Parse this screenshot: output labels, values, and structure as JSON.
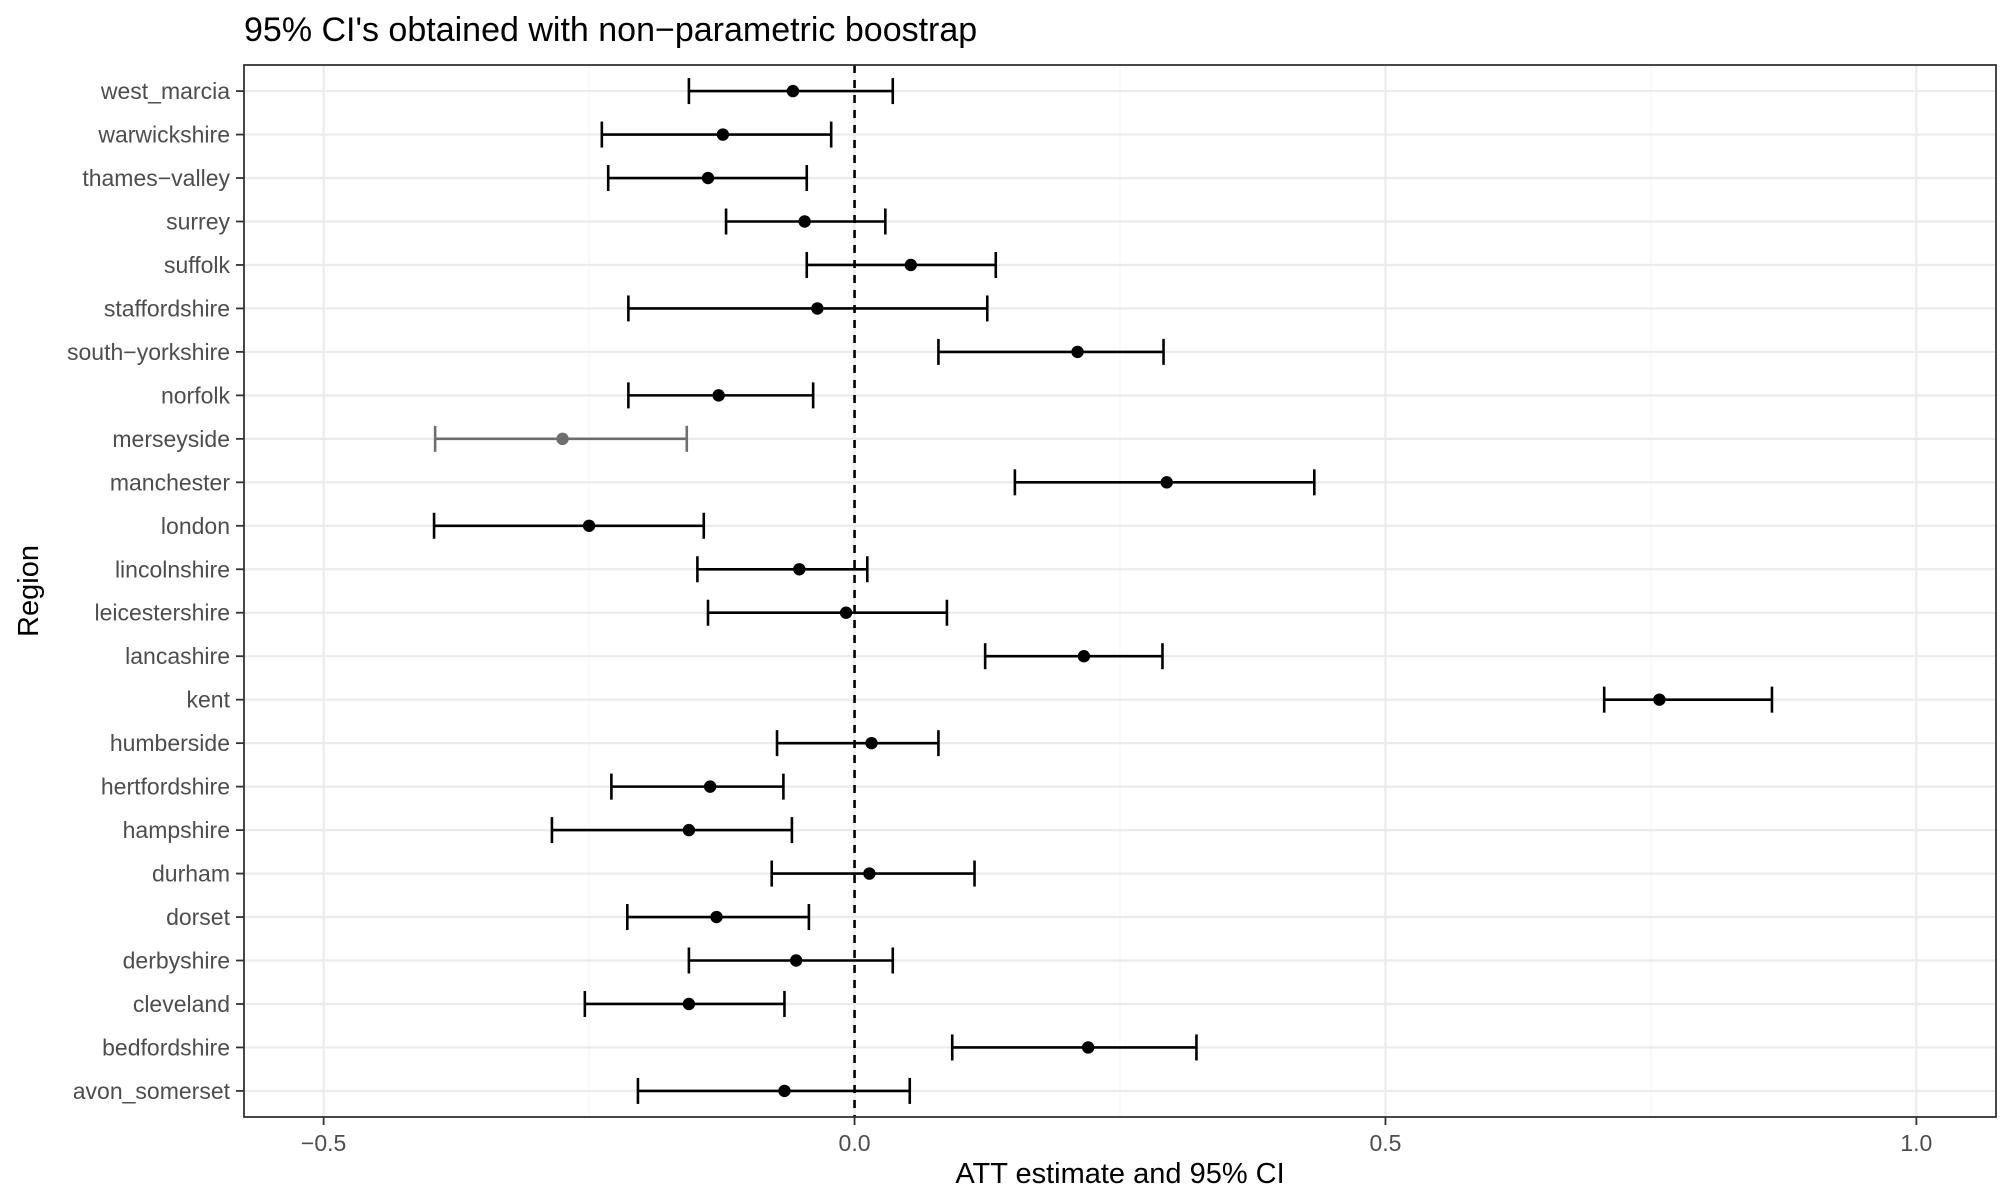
{
  "chart_data": {
    "type": "errorbar",
    "title": "95% CI's obtained with non−parametric boostrap",
    "xlabel": "ATT estimate and 95% CI",
    "ylabel": "Region",
    "xlim": [
      -0.575,
      1.075
    ],
    "x_ticks": [
      -0.5,
      0.0,
      0.5,
      1.0
    ],
    "x_tick_labels": [
      "−0.5",
      "0.0",
      "0.5",
      "1.0"
    ],
    "reference_line": {
      "x": 0.0,
      "style": "dashed"
    },
    "grid": true,
    "colors": {
      "default": "#000000",
      "highlight": "#6e6e6e"
    },
    "categories": [
      "west_marcia",
      "warwickshire",
      "thames−valley",
      "surrey",
      "suffolk",
      "staffordshire",
      "south−yorkshire",
      "norfolk",
      "merseyside",
      "manchester",
      "london",
      "lincolnshire",
      "leicestershire",
      "lancashire",
      "kent",
      "humberside",
      "hertfordshire",
      "hampshire",
      "durham",
      "dorset",
      "derbyshire",
      "cleveland",
      "bedfordshire",
      "avon_somerset"
    ],
    "estimate": [
      -0.058,
      -0.124,
      -0.138,
      -0.047,
      0.053,
      -0.035,
      0.21,
      -0.128,
      -0.275,
      0.294,
      -0.25,
      -0.052,
      -0.008,
      0.216,
      0.758,
      0.016,
      -0.136,
      -0.156,
      0.014,
      -0.13,
      -0.055,
      -0.156,
      0.22,
      -0.066
    ],
    "lower": [
      -0.156,
      -0.238,
      -0.232,
      -0.121,
      -0.045,
      -0.213,
      0.079,
      -0.213,
      -0.395,
      0.151,
      -0.396,
      -0.148,
      -0.138,
      0.123,
      0.706,
      -0.073,
      -0.229,
      -0.285,
      -0.078,
      -0.214,
      -0.156,
      -0.254,
      0.092,
      -0.204
    ],
    "upper": [
      0.036,
      -0.022,
      -0.045,
      0.029,
      0.133,
      0.125,
      0.291,
      -0.039,
      -0.158,
      0.433,
      -0.142,
      0.012,
      0.087,
      0.29,
      0.864,
      0.079,
      -0.067,
      -0.059,
      0.113,
      -0.043,
      0.036,
      -0.066,
      0.322,
      0.052
    ],
    "highlight": [
      "merseyside"
    ]
  }
}
